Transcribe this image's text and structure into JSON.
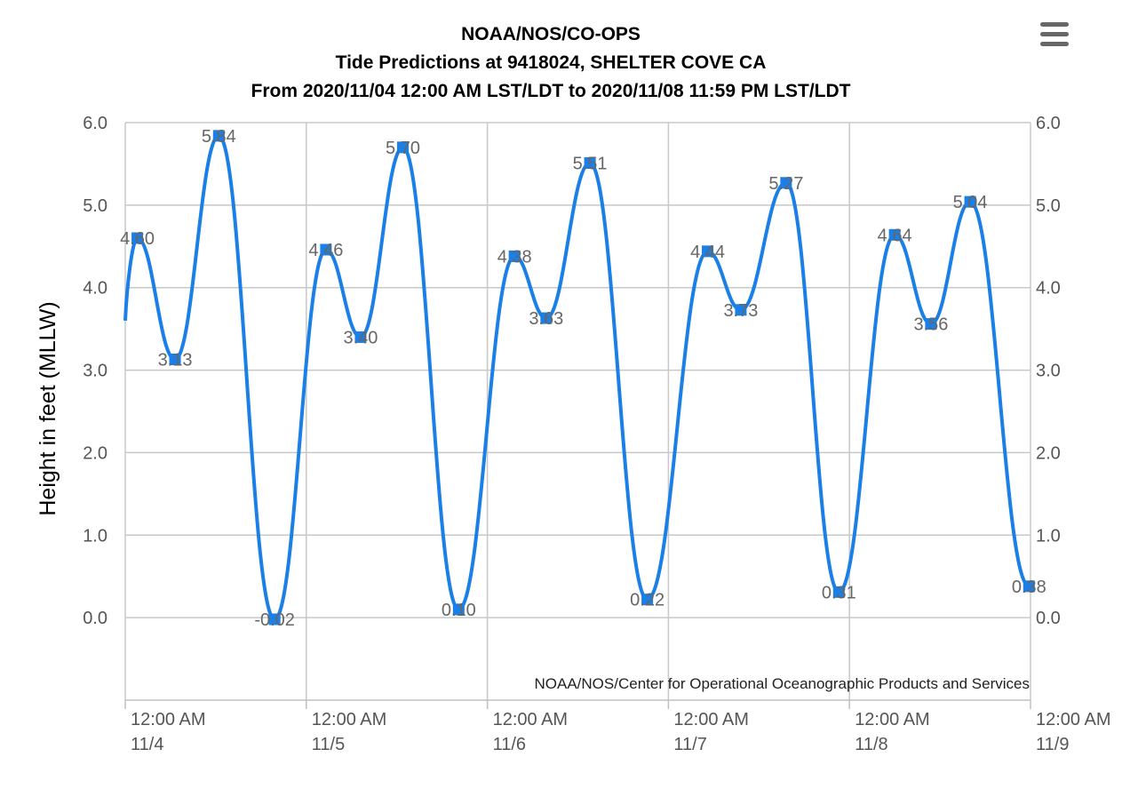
{
  "header": {
    "title_line1": "NOAA/NOS/CO-OPS",
    "title_line2": "Tide Predictions at 9418024, SHELTER COVE CA",
    "title_line3": "From 2020/11/04 12:00 AM LST/LDT to 2020/11/08 11:59 PM LST/LDT"
  },
  "menu": {
    "icon": "hamburger-menu-icon"
  },
  "credit": "NOAA/NOS/Center for Operational Oceanographic Products and Services",
  "colors": {
    "series": "#1a7fe6",
    "grid": "#c8c8c8",
    "axis": "#c0c0c0"
  },
  "chart_data": {
    "type": "line",
    "ylabel": "Height in feet (MLLW)",
    "ylim": [
      -1.0,
      6.0
    ],
    "yticks": [
      0.0,
      1.0,
      2.0,
      3.0,
      4.0,
      5.0,
      6.0
    ],
    "ytick_labels": [
      "0.0",
      "1.0",
      "2.0",
      "3.0",
      "4.0",
      "5.0",
      "6.0"
    ],
    "grid": true,
    "x_unit": "day",
    "xlim": [
      "2020-11-04 00:00",
      "2020-11-09 00:00"
    ],
    "xticks": [
      {
        "time": "2020-11-04 00:00",
        "line1": "12:00 AM",
        "line2": "11/4"
      },
      {
        "time": "2020-11-05 00:00",
        "line1": "12:00 AM",
        "line2": "11/5"
      },
      {
        "time": "2020-11-06 00:00",
        "line1": "12:00 AM",
        "line2": "11/6"
      },
      {
        "time": "2020-11-07 00:00",
        "line1": "12:00 AM",
        "line2": "11/7"
      },
      {
        "time": "2020-11-08 00:00",
        "line1": "12:00 AM",
        "line2": "11/8"
      },
      {
        "time": "2020-11-09 00:00",
        "line1": "12:00 AM",
        "line2": "11/9"
      }
    ],
    "series": [
      {
        "start": {
          "time": "2020-11-04 00:00",
          "value": 3.6
        },
        "points": [
          {
            "time": "2020-11-04 01:36",
            "value": 4.6,
            "label": "4.60"
          },
          {
            "time": "2020-11-04 06:36",
            "value": 3.13,
            "label": "3.13"
          },
          {
            "time": "2020-11-04 12:24",
            "value": 5.84,
            "label": "5.84"
          },
          {
            "time": "2020-11-04 19:48",
            "value": -0.02,
            "label": "-0.02"
          },
          {
            "time": "2020-11-05 02:36",
            "value": 4.46,
            "label": "4.46"
          },
          {
            "time": "2020-11-05 07:12",
            "value": 3.4,
            "label": "3.40"
          },
          {
            "time": "2020-11-05 12:48",
            "value": 5.7,
            "label": "5.70"
          },
          {
            "time": "2020-11-05 20:12",
            "value": 0.1,
            "label": "0.10"
          },
          {
            "time": "2020-11-06 03:36",
            "value": 4.38,
            "label": "4.38"
          },
          {
            "time": "2020-11-06 07:48",
            "value": 3.63,
            "label": "3.63"
          },
          {
            "time": "2020-11-06 13:36",
            "value": 5.51,
            "label": "5.51"
          },
          {
            "time": "2020-11-06 21:12",
            "value": 0.22,
            "label": "0.22"
          },
          {
            "time": "2020-11-07 05:12",
            "value": 4.44,
            "label": "4.44"
          },
          {
            "time": "2020-11-07 09:36",
            "value": 3.73,
            "label": "3.73"
          },
          {
            "time": "2020-11-07 15:36",
            "value": 5.27,
            "label": "5.27"
          },
          {
            "time": "2020-11-07 22:36",
            "value": 0.31,
            "label": "0.31"
          },
          {
            "time": "2020-11-08 06:00",
            "value": 4.64,
            "label": "4.64"
          },
          {
            "time": "2020-11-08 10:48",
            "value": 3.56,
            "label": "3.56"
          },
          {
            "time": "2020-11-08 16:00",
            "value": 5.04,
            "label": "5.04"
          },
          {
            "time": "2020-11-08 23:48",
            "value": 0.38,
            "label": "0.38"
          }
        ]
      }
    ]
  }
}
